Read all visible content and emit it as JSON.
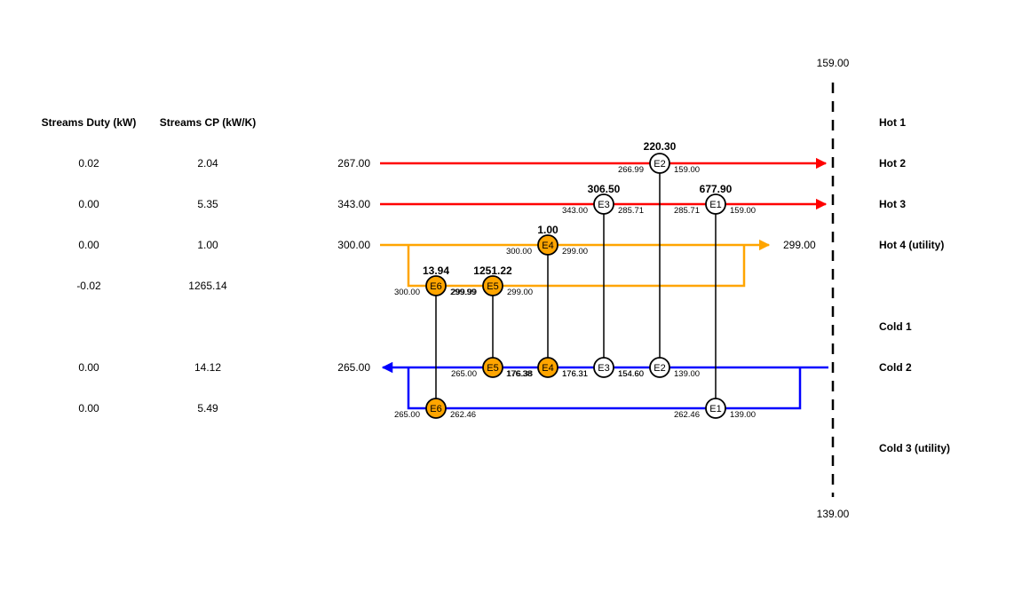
{
  "headers": {
    "duty": "Streams Duty (kW)",
    "cp": "Streams CP (kW/K)"
  },
  "temperatures": {
    "top": "159.00",
    "bottom": "139.00"
  },
  "colors": {
    "hot": "#ff0000",
    "utility": "#ffa500",
    "cold": "#0000ff"
  },
  "streams": [
    {
      "id": "hot1",
      "name": "Hot 1"
    },
    {
      "id": "hot2",
      "name": "Hot 2",
      "duty": "0.02",
      "cp": "2.04",
      "t_in": "267.00"
    },
    {
      "id": "hot3",
      "name": "Hot 3",
      "duty": "0.00",
      "cp": "5.35",
      "t_in": "343.00"
    },
    {
      "id": "hot4",
      "name": "Hot 4 (utility)",
      "duty": "0.00",
      "cp": "1.00",
      "t_in": "300.00",
      "t_out": "299.00"
    },
    {
      "id": "hot4b",
      "duty": "-0.02",
      "cp": "1265.14"
    },
    {
      "id": "cold1",
      "name": "Cold 1"
    },
    {
      "id": "cold2",
      "name": "Cold 2",
      "duty": "0.00",
      "cp": "14.12",
      "t_out": "265.00"
    },
    {
      "id": "cold2b",
      "duty": "0.00",
      "cp": "5.49"
    },
    {
      "id": "cold3",
      "name": "Cold 3 (utility)"
    }
  ],
  "exchangers": [
    {
      "id": "E1",
      "duty": "677.90",
      "hot_in": "285.71",
      "hot_out": "159.00",
      "cold_in": "139.00",
      "cold_out": "262.46"
    },
    {
      "id": "E2",
      "duty": "220.30",
      "hot_in": "266.99",
      "hot_out": "159.00",
      "cold_in": "139.00",
      "cold_out": "154.60"
    },
    {
      "id": "E3",
      "duty": "306.50",
      "hot_in": "343.00",
      "hot_out": "285.71",
      "cold_in": "154.60",
      "cold_out": "176.31"
    },
    {
      "id": "E4",
      "duty": "1.00",
      "hot_in": "300.00",
      "hot_out": "299.00",
      "cold_in": "176.31",
      "cold_out": "176.38"
    },
    {
      "id": "E5",
      "duty": "1251.22",
      "hot_in": "299.99",
      "hot_out": "299.00",
      "cold_in": "176.38",
      "cold_out": "265.00"
    },
    {
      "id": "E6",
      "duty": "13.94",
      "hot_in": "300.00",
      "hot_out": "299.99",
      "cold_in": "262.46",
      "cold_out": "265.00"
    }
  ]
}
